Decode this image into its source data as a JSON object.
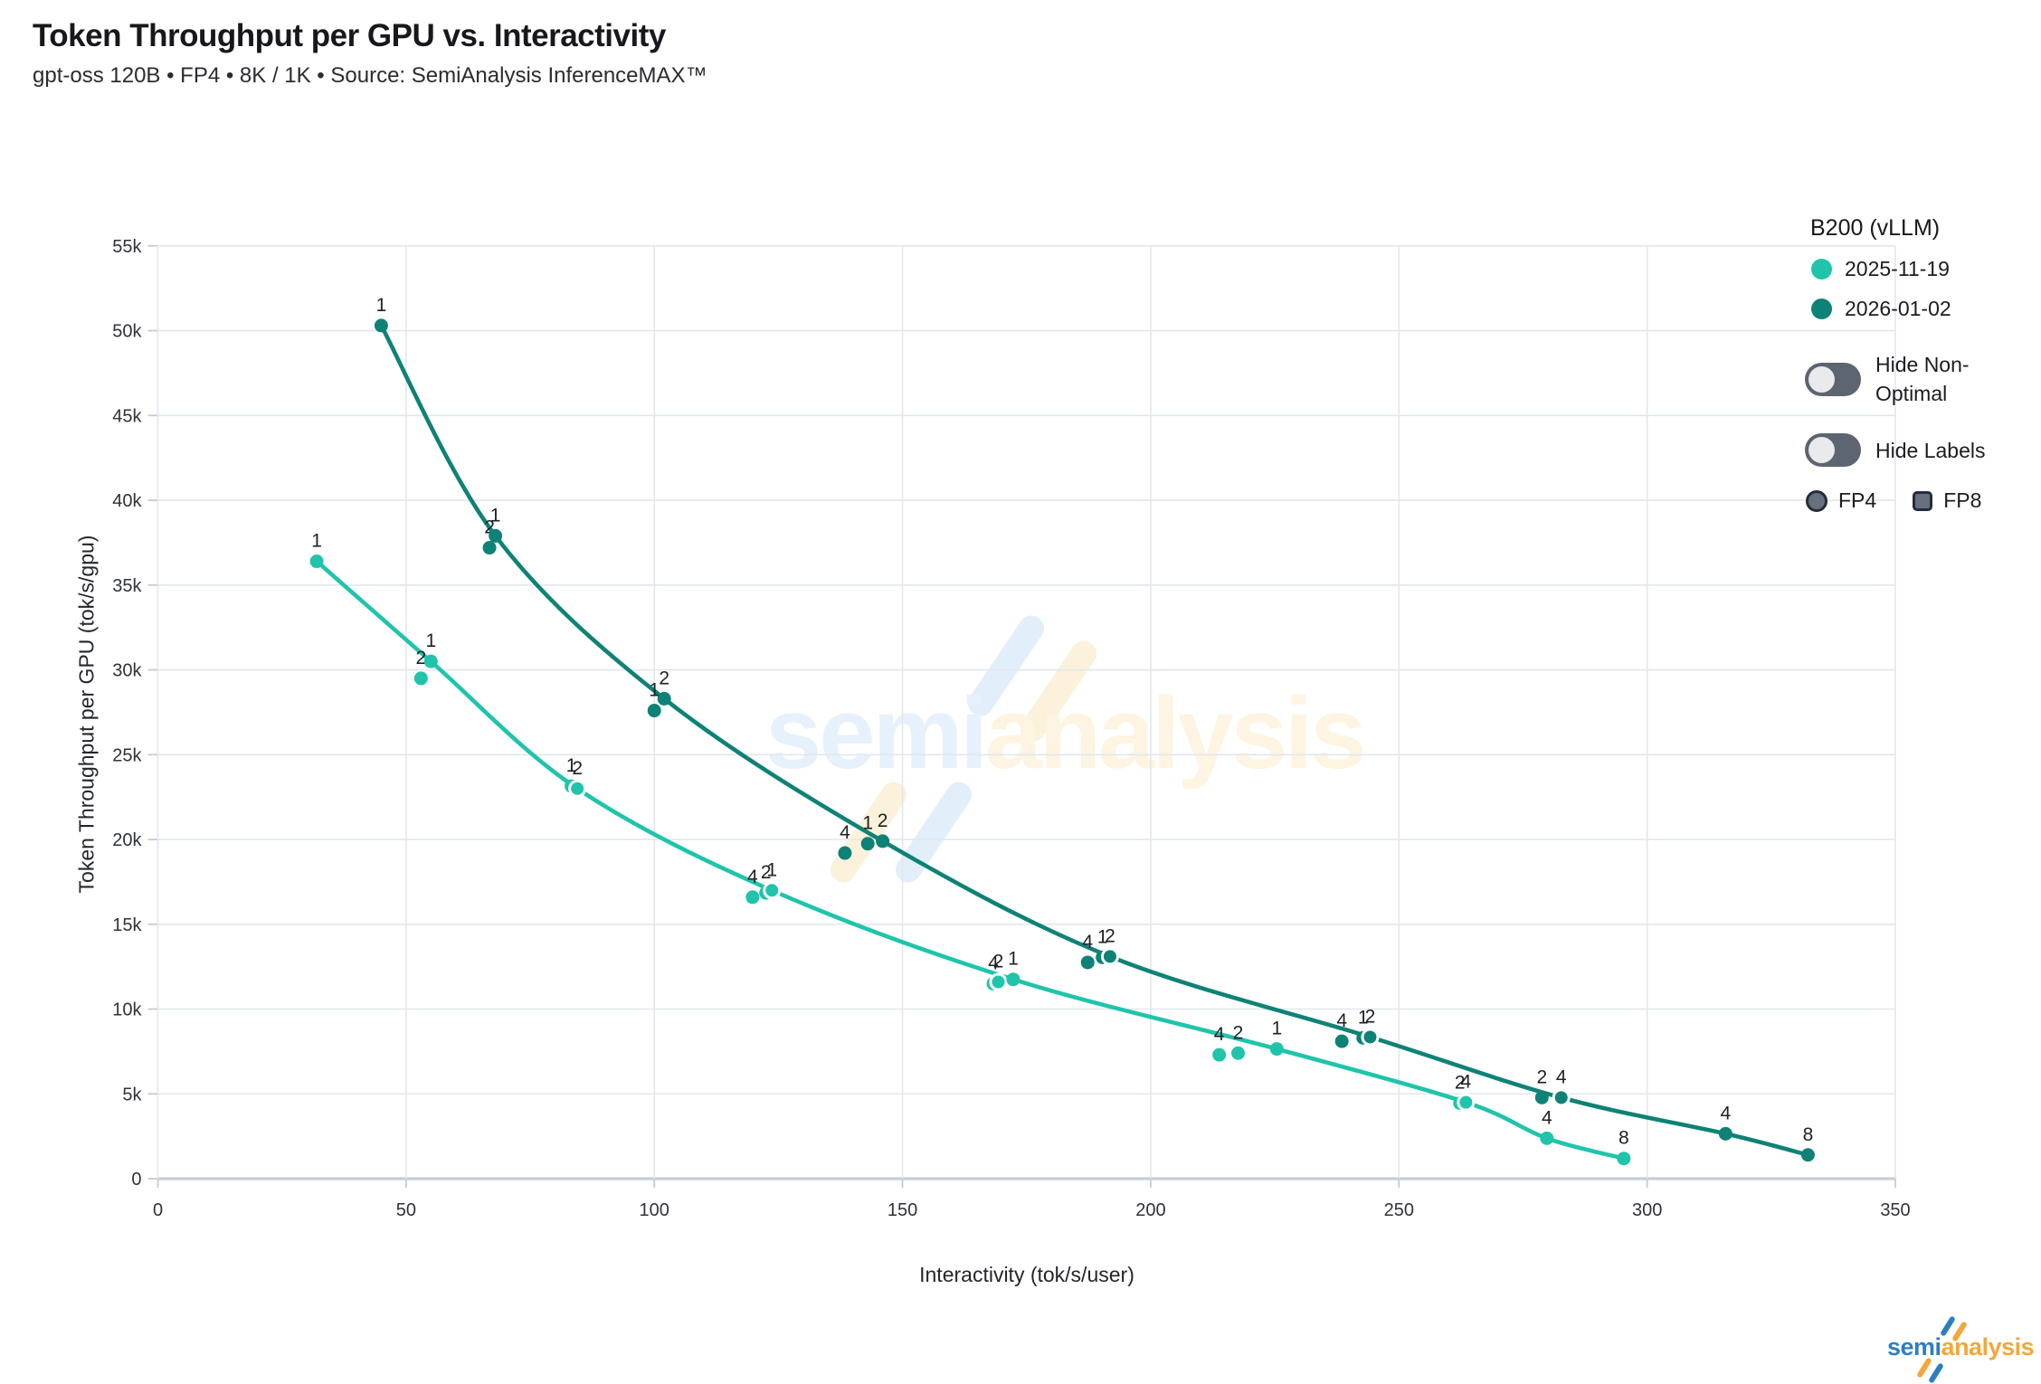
{
  "header": {
    "title": "Token Throughput per GPU vs. Interactivity",
    "subtitle": "gpt-oss 120B • FP4 • 8K / 1K • Source: SemiAnalysis InferenceMAX™"
  },
  "legend": {
    "title": "B200 (vLLM)",
    "series": [
      {
        "label": "2025-11-19",
        "color": "#1fc4ab"
      },
      {
        "label": "2026-01-02",
        "color": "#0e8276"
      }
    ],
    "toggles": [
      {
        "label": "Hide Non-Optimal",
        "state": "off"
      },
      {
        "label": "Hide Labels",
        "state": "off"
      }
    ],
    "markers": [
      {
        "shape": "circle",
        "label": "FP4"
      },
      {
        "shape": "square",
        "label": "FP8"
      }
    ]
  },
  "watermark": {
    "text_left": "semi",
    "text_right": "analysis"
  },
  "brand": {
    "text_left": "semi",
    "text_right": "analysis"
  },
  "chart_data": {
    "type": "scatter",
    "title": "Token Throughput per GPU vs. Interactivity",
    "xlabel": "Interactivity (tok/s/user)",
    "ylabel": "Token Throughput per GPU (tok/s/gpu)",
    "xlim": [
      0,
      350
    ],
    "ylim": [
      0,
      55000
    ],
    "grid": true,
    "point_label_meaning": "tensor-parallel / config size shown beside each point",
    "xticks": [
      {
        "v": 0,
        "label": "0"
      },
      {
        "v": 50,
        "label": "50"
      },
      {
        "v": 100,
        "label": "100"
      },
      {
        "v": 150,
        "label": "150"
      },
      {
        "v": 200,
        "label": "200"
      },
      {
        "v": 250,
        "label": "250"
      },
      {
        "v": 300,
        "label": "300"
      },
      {
        "v": 350,
        "label": "350"
      }
    ],
    "yticks": [
      {
        "v": 0,
        "label": "0"
      },
      {
        "v": 5000,
        "label": "5k"
      },
      {
        "v": 10000,
        "label": "10k"
      },
      {
        "v": 15000,
        "label": "15k"
      },
      {
        "v": 20000,
        "label": "20k"
      },
      {
        "v": 25000,
        "label": "25k"
      },
      {
        "v": 30000,
        "label": "30k"
      },
      {
        "v": 35000,
        "label": "35k"
      },
      {
        "v": 40000,
        "label": "40k"
      },
      {
        "v": 45000,
        "label": "45k"
      },
      {
        "v": 50000,
        "label": "50k"
      },
      {
        "v": 55000,
        "label": "55k"
      }
    ],
    "series": [
      {
        "name": "2025-11-19",
        "color": "#1fc4ab",
        "line": [
          [
            32,
            36400
          ],
          [
            55,
            30500
          ],
          [
            84.5,
            23000
          ],
          [
            123.7,
            17000
          ],
          [
            172.3,
            11750
          ],
          [
            225.4,
            7650
          ],
          [
            263.5,
            4500
          ],
          [
            279.8,
            2380
          ],
          [
            295.3,
            1190
          ]
        ],
        "points": [
          {
            "x": 32,
            "y": 36400,
            "label": "1"
          },
          {
            "x": 53,
            "y": 29500,
            "label": "2"
          },
          {
            "x": 55,
            "y": 30500,
            "label": "1"
          },
          {
            "x": 83.3,
            "y": 23150,
            "label": "1"
          },
          {
            "x": 84.5,
            "y": 23000,
            "label": "2",
            "ring": true
          },
          {
            "x": 119.8,
            "y": 16600,
            "label": "4"
          },
          {
            "x": 122.5,
            "y": 16850,
            "label": "2"
          },
          {
            "x": 123.7,
            "y": 17000,
            "label": "1",
            "ring": true
          },
          {
            "x": 168.3,
            "y": 11500,
            "label": "4"
          },
          {
            "x": 169.3,
            "y": 11600,
            "label": "2",
            "ring": true
          },
          {
            "x": 172.3,
            "y": 11750,
            "label": "1"
          },
          {
            "x": 213.8,
            "y": 7300,
            "label": "4"
          },
          {
            "x": 217.6,
            "y": 7400,
            "label": "2"
          },
          {
            "x": 225.4,
            "y": 7650,
            "label": "1"
          },
          {
            "x": 262.3,
            "y": 4450,
            "label": "2"
          },
          {
            "x": 263.5,
            "y": 4500,
            "label": "4",
            "ring": true
          },
          {
            "x": 279.8,
            "y": 2380,
            "label": "4"
          },
          {
            "x": 295.3,
            "y": 1190,
            "label": "8"
          }
        ]
      },
      {
        "name": "2026-01-02",
        "color": "#0e8276",
        "line": [
          [
            45,
            50300
          ],
          [
            68,
            37900
          ],
          [
            102,
            28300
          ],
          [
            146,
            19900
          ],
          [
            191.8,
            13100
          ],
          [
            244.2,
            8350
          ],
          [
            282.7,
            4780
          ],
          [
            315.8,
            2650
          ],
          [
            332.4,
            1400
          ]
        ],
        "points": [
          {
            "x": 45,
            "y": 50300,
            "label": "1"
          },
          {
            "x": 66.8,
            "y": 37200,
            "label": "2"
          },
          {
            "x": 68,
            "y": 37900,
            "label": "1"
          },
          {
            "x": 100,
            "y": 27600,
            "label": "1"
          },
          {
            "x": 102,
            "y": 28300,
            "label": "2"
          },
          {
            "x": 138.4,
            "y": 19200,
            "label": "4"
          },
          {
            "x": 143,
            "y": 19750,
            "label": "1"
          },
          {
            "x": 146,
            "y": 19900,
            "label": "2"
          },
          {
            "x": 187.3,
            "y": 12750,
            "label": "4"
          },
          {
            "x": 190.3,
            "y": 13050,
            "label": "1"
          },
          {
            "x": 191.8,
            "y": 13100,
            "label": "2",
            "ring": true
          },
          {
            "x": 238.5,
            "y": 8100,
            "label": "4"
          },
          {
            "x": 242.8,
            "y": 8300,
            "label": "1"
          },
          {
            "x": 244.2,
            "y": 8350,
            "label": "2",
            "ring": true
          },
          {
            "x": 278.8,
            "y": 4780,
            "label": "2"
          },
          {
            "x": 282.7,
            "y": 4780,
            "label": "4",
            "ring": true
          },
          {
            "x": 315.8,
            "y": 2650,
            "label": "4"
          },
          {
            "x": 332.4,
            "y": 1400,
            "label": "8"
          }
        ]
      }
    ]
  }
}
